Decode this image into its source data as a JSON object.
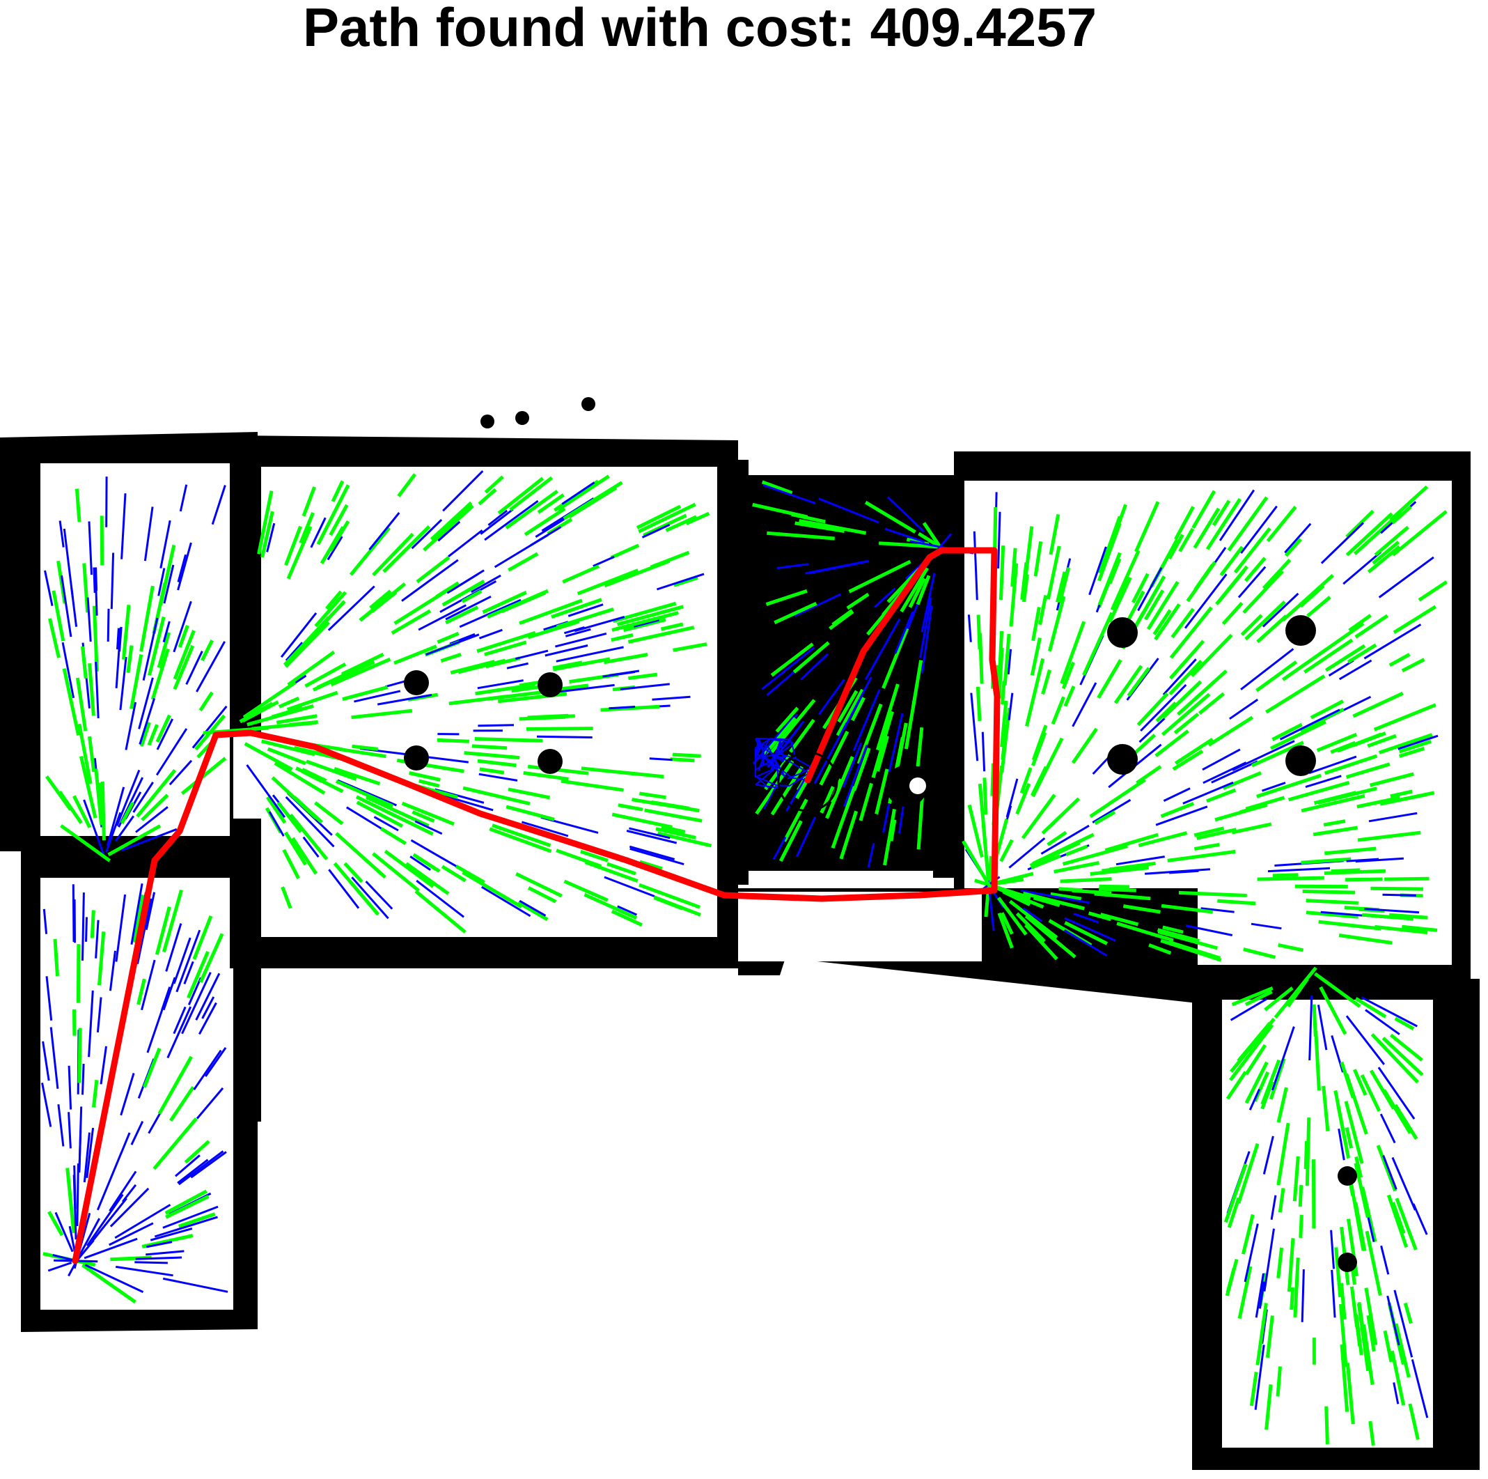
{
  "title": "Path found with cost: 409.4257",
  "colors": {
    "background": "#ffffff",
    "obstacle": "#000000",
    "tree_old": "#0000ff",
    "tree_new": "#00ff00",
    "path": "#ff0000",
    "goal_circle": "#000000"
  },
  "legend": "none",
  "grid": false
}
